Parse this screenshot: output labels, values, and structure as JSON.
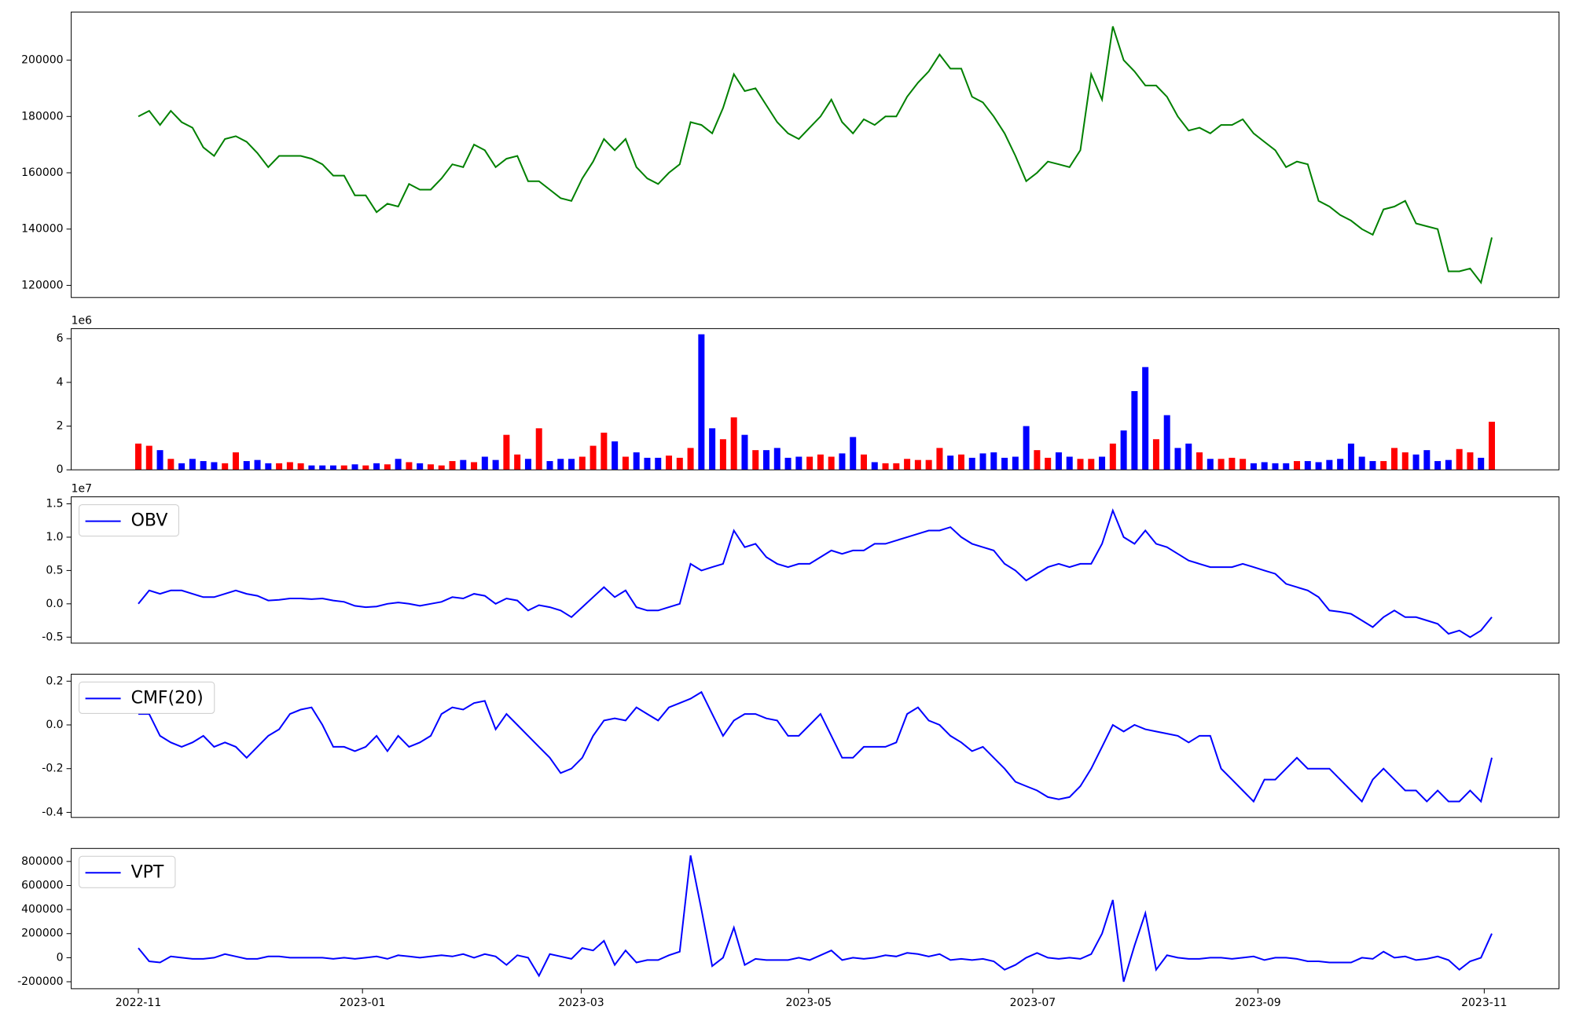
{
  "chart_data": [
    {
      "type": "line",
      "color": "#008000",
      "xlim": [
        -6.2,
        131.2
      ],
      "ylim": [
        115700,
        217100
      ],
      "yticks": [
        120000,
        140000,
        160000,
        180000,
        200000
      ],
      "values": [
        180000,
        182000,
        177000,
        182000,
        178000,
        176000,
        169000,
        166000,
        172000,
        173000,
        171000,
        167000,
        162000,
        166000,
        166000,
        166000,
        165000,
        163000,
        159000,
        159000,
        152000,
        152000,
        146000,
        149000,
        148000,
        156000,
        154000,
        154000,
        158000,
        163000,
        162000,
        170000,
        168000,
        162000,
        165000,
        166000,
        157000,
        157000,
        154000,
        151000,
        150000,
        158000,
        164000,
        172000,
        168000,
        172000,
        162000,
        158000,
        156000,
        160000,
        163000,
        178000,
        177000,
        174000,
        183000,
        195000,
        189000,
        190000,
        184000,
        178000,
        174000,
        172000,
        176000,
        180000,
        186000,
        178000,
        174000,
        179000,
        177000,
        180000,
        180000,
        187000,
        192000,
        196000,
        202000,
        197000,
        197000,
        187000,
        185000,
        180000,
        174000,
        166000,
        157000,
        160000,
        164000,
        163000,
        162000,
        168000,
        195000,
        186000,
        212000,
        200000,
        196000,
        191000,
        191000,
        187000,
        180000,
        175000,
        176000,
        174000,
        177000,
        177000,
        179000,
        174000,
        171000,
        168000,
        162000,
        164000,
        163000,
        150000,
        148000,
        145000,
        143000,
        140000,
        138000,
        147000,
        148000,
        150000,
        142000,
        141000,
        140000,
        125000,
        125000,
        126000,
        121000,
        137000
      ]
    },
    {
      "type": "bar",
      "offset_label": "1e6",
      "up_color": "#ff0000",
      "down_color": "#0000ff",
      "xlim": [
        -6.2,
        131.2
      ],
      "ylim": [
        0,
        6.46
      ],
      "yticks": [
        0,
        2,
        4,
        6
      ],
      "values": [
        1.2,
        1.1,
        0.9,
        0.5,
        0.3,
        0.5,
        0.4,
        0.35,
        0.3,
        0.8,
        0.4,
        0.45,
        0.3,
        0.3,
        0.35,
        0.3,
        0.2,
        0.2,
        0.2,
        0.2,
        0.25,
        0.2,
        0.3,
        0.25,
        0.5,
        0.35,
        0.3,
        0.25,
        0.2,
        0.4,
        0.45,
        0.35,
        0.6,
        0.45,
        1.6,
        0.7,
        0.5,
        1.9,
        0.4,
        0.5,
        0.5,
        0.6,
        1.1,
        1.7,
        1.3,
        0.6,
        0.8,
        0.55,
        0.55,
        0.65,
        0.55,
        1.0,
        6.2,
        1.9,
        1.4,
        2.4,
        1.6,
        0.9,
        0.9,
        1.0,
        0.55,
        0.6,
        0.6,
        0.7,
        0.6,
        0.75,
        1.5,
        0.7,
        0.35,
        0.3,
        0.3,
        0.5,
        0.45,
        0.45,
        1.0,
        0.65,
        0.7,
        0.55,
        0.75,
        0.8,
        0.55,
        0.6,
        2.0,
        0.9,
        0.55,
        0.8,
        0.6,
        0.5,
        0.5,
        0.6,
        1.2,
        1.8,
        3.6,
        4.7,
        1.4,
        2.5,
        1.0,
        1.2,
        0.8,
        0.5,
        0.5,
        0.55,
        0.5,
        0.3,
        0.35,
        0.3,
        0.3,
        0.4,
        0.4,
        0.35,
        0.45,
        0.5,
        1.2,
        0.6,
        0.4,
        0.4,
        1.0,
        0.8,
        0.7,
        0.9,
        0.4,
        0.45,
        0.95,
        0.8,
        0.55,
        2.2
      ]
    },
    {
      "type": "line",
      "offset_label": "1e7",
      "xlim": [
        -6.2,
        131.2
      ],
      "ylim": [
        -0.59,
        1.605
      ],
      "yticks": [
        -0.5,
        {
          "value": 0,
          "label": "0.0"
        },
        0.5,
        {
          "value": 1,
          "label": "1.0"
        },
        1.5
      ],
      "series": [
        {
          "name": "OBV",
          "color": "#0000ff",
          "values": [
            0.0,
            0.2,
            0.15,
            0.2,
            0.2,
            0.15,
            0.1,
            0.1,
            0.15,
            0.2,
            0.15,
            0.12,
            0.05,
            0.06,
            0.08,
            0.08,
            0.07,
            0.08,
            0.05,
            0.03,
            -0.03,
            -0.05,
            -0.04,
            0.0,
            0.02,
            0.0,
            -0.03,
            0.0,
            0.03,
            0.1,
            0.08,
            0.15,
            0.12,
            0.0,
            0.08,
            0.05,
            -0.1,
            -0.02,
            -0.05,
            -0.1,
            -0.2,
            -0.05,
            0.1,
            0.25,
            0.1,
            0.2,
            -0.05,
            -0.1,
            -0.1,
            -0.05,
            0.0,
            0.6,
            0.5,
            0.55,
            0.6,
            1.1,
            0.85,
            0.9,
            0.7,
            0.6,
            0.55,
            0.6,
            0.6,
            0.7,
            0.8,
            0.75,
            0.8,
            0.8,
            0.9,
            0.9,
            0.95,
            1.0,
            1.05,
            1.1,
            1.1,
            1.15,
            1.0,
            0.9,
            0.85,
            0.8,
            0.6,
            0.5,
            0.35,
            0.45,
            0.55,
            0.6,
            0.55,
            0.6,
            0.6,
            0.9,
            1.4,
            1.0,
            0.9,
            1.1,
            0.9,
            0.85,
            0.75,
            0.65,
            0.6,
            0.55,
            0.55,
            0.55,
            0.6,
            0.55,
            0.5,
            0.45,
            0.3,
            0.25,
            0.2,
            0.1,
            -0.1,
            -0.12,
            -0.15,
            -0.25,
            -0.35,
            -0.2,
            -0.1,
            -0.2,
            -0.2,
            -0.25,
            -0.3,
            -0.45,
            -0.4,
            -0.5,
            -0.4,
            -0.2
          ]
        }
      ]
    },
    {
      "type": "line",
      "xlim": [
        -6.2,
        131.2
      ],
      "ylim": [
        -0.423,
        0.232
      ],
      "yticks": [
        -0.4,
        -0.2,
        {
          "value": 0,
          "label": "0.0"
        },
        0.2
      ],
      "series": [
        {
          "name": "CMF(20)",
          "color": "#0000ff",
          "values": [
            0.05,
            0.05,
            -0.05,
            -0.08,
            -0.1,
            -0.08,
            -0.05,
            -0.1,
            -0.08,
            -0.1,
            -0.15,
            -0.1,
            -0.05,
            -0.02,
            0.05,
            0.07,
            0.08,
            0.0,
            -0.1,
            -0.1,
            -0.12,
            -0.1,
            -0.05,
            -0.12,
            -0.05,
            -0.1,
            -0.08,
            -0.05,
            0.05,
            0.08,
            0.07,
            0.1,
            0.11,
            -0.02,
            0.05,
            0.0,
            -0.05,
            -0.1,
            -0.15,
            -0.22,
            -0.2,
            -0.15,
            -0.05,
            0.02,
            0.03,
            0.02,
            0.08,
            0.05,
            0.02,
            0.08,
            0.1,
            0.12,
            0.15,
            0.05,
            -0.05,
            0.02,
            0.05,
            0.05,
            0.03,
            0.02,
            -0.05,
            -0.05,
            0.0,
            0.05,
            -0.05,
            -0.15,
            -0.15,
            -0.1,
            -0.1,
            -0.1,
            -0.08,
            0.05,
            0.08,
            0.02,
            0.0,
            -0.05,
            -0.08,
            -0.12,
            -0.1,
            -0.15,
            -0.2,
            -0.26,
            -0.28,
            -0.3,
            -0.33,
            -0.34,
            -0.33,
            -0.28,
            -0.2,
            -0.1,
            0.0,
            -0.03,
            0.0,
            -0.02,
            -0.03,
            -0.04,
            -0.05,
            -0.08,
            -0.05,
            -0.05,
            -0.2,
            -0.25,
            -0.3,
            -0.35,
            -0.25,
            -0.25,
            -0.2,
            -0.15,
            -0.2,
            -0.2,
            -0.2,
            -0.25,
            -0.3,
            -0.35,
            -0.25,
            -0.2,
            -0.25,
            -0.3,
            -0.3,
            -0.35,
            -0.3,
            -0.35,
            -0.35,
            -0.3,
            -0.35,
            -0.15
          ]
        }
      ]
    },
    {
      "type": "line",
      "xlim": [
        -6.2,
        131.2
      ],
      "ylim": [
        -258000,
        908000
      ],
      "yticks": [
        -200000,
        0,
        200000,
        400000,
        600000,
        800000
      ],
      "xticks": [
        {
          "value": 0,
          "label": "2022-11"
        },
        {
          "value": 20.7,
          "label": "2023-01"
        },
        {
          "value": 40.9,
          "label": "2023-03"
        },
        {
          "value": 61.9,
          "label": "2023-05"
        },
        {
          "value": 82.6,
          "label": "2023-07"
        },
        {
          "value": 103.4,
          "label": "2023-09"
        },
        {
          "value": 124.3,
          "label": "2023-11"
        }
      ],
      "series": [
        {
          "name": "VPT",
          "color": "#0000ff",
          "values": [
            80000,
            -30000,
            -40000,
            10000,
            0,
            -10000,
            -10000,
            0,
            30000,
            10000,
            -10000,
            -10000,
            10000,
            10000,
            0,
            0,
            0,
            0,
            -10000,
            0,
            -10000,
            0,
            10000,
            -10000,
            20000,
            10000,
            0,
            10000,
            20000,
            10000,
            30000,
            0,
            30000,
            10000,
            -60000,
            20000,
            0,
            -150000,
            30000,
            10000,
            -10000,
            80000,
            60000,
            140000,
            -60000,
            60000,
            -40000,
            -20000,
            -20000,
            20000,
            50000,
            850000,
            400000,
            -70000,
            0,
            250000,
            -60000,
            -10000,
            -20000,
            -20000,
            -20000,
            0,
            -20000,
            20000,
            60000,
            -20000,
            0,
            -10000,
            0,
            20000,
            10000,
            40000,
            30000,
            10000,
            30000,
            -20000,
            -10000,
            -20000,
            -10000,
            -30000,
            -100000,
            -60000,
            0,
            40000,
            0,
            -10000,
            0,
            -10000,
            30000,
            200000,
            480000,
            -200000,
            100000,
            370000,
            -100000,
            20000,
            0,
            -10000,
            -10000,
            0,
            0,
            -10000,
            0,
            10000,
            -20000,
            0,
            0,
            -10000,
            -30000,
            -30000,
            -40000,
            -40000,
            -40000,
            0,
            -10000,
            50000,
            0,
            10000,
            -20000,
            -10000,
            10000,
            -20000,
            -100000,
            -30000,
            0,
            200000
          ]
        }
      ]
    }
  ]
}
